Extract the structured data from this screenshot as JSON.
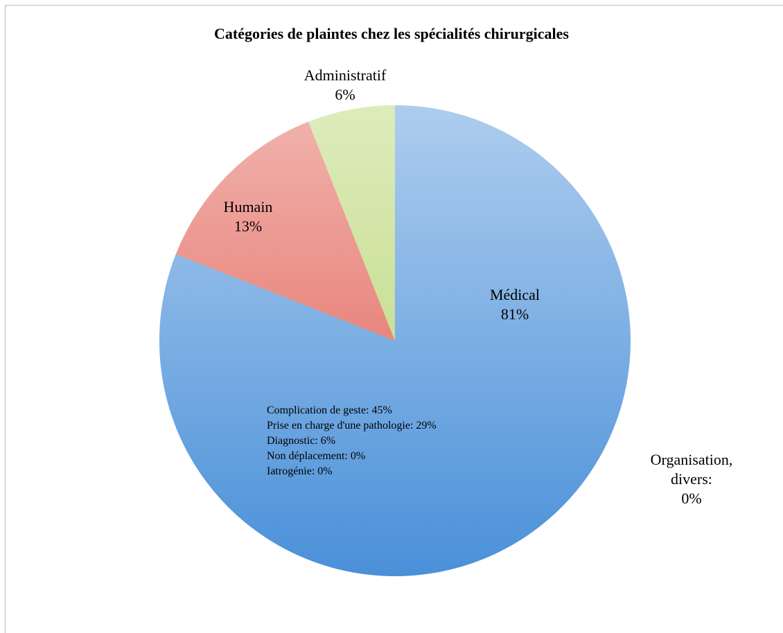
{
  "chart_data": {
    "type": "pie",
    "title": "Catégories de plaintes chez les spécialités chirurgicales",
    "categories": [
      "Médical",
      "Organisation, divers:",
      "Humain",
      "Administratif"
    ],
    "values": [
      81,
      0,
      13,
      6
    ],
    "value_labels": [
      "81%",
      "0%",
      "13%",
      "6%"
    ],
    "colors": [
      "#4a90d9",
      "#4a90d9",
      "#e0584c",
      "#b5d46c"
    ],
    "annotations": [
      "Complication de geste: 45%",
      "Prise en charge d'une pathologie: 29%",
      "Diagnostic: 6%",
      "Non déplacement: 0%",
      "Iatrogénie: 0%"
    ]
  }
}
